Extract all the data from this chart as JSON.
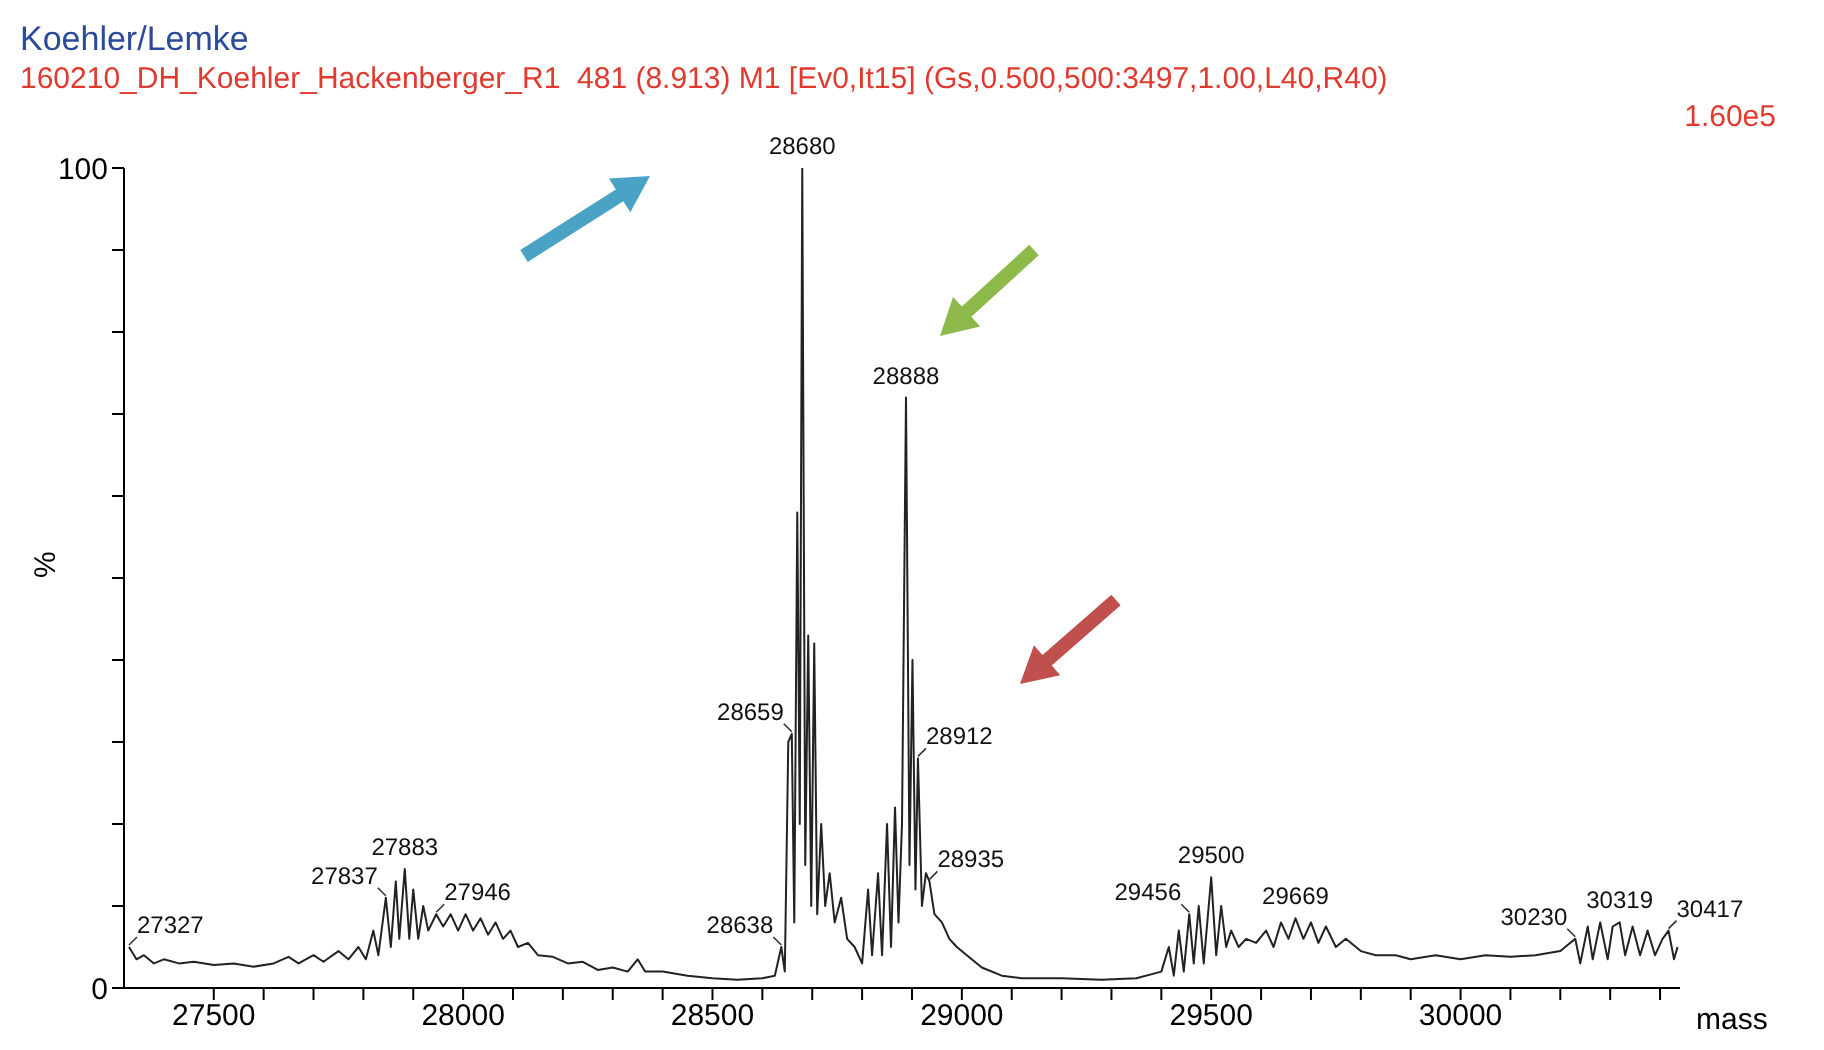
{
  "chart_data": {
    "type": "line",
    "title": "Koehler/Lemke",
    "subtitle": "160210_DH_Koehler_Hackenberger_R1  481 (8.913) M1 [Ev0,It15] (Gs,0.500,500:3497,1.00,L40,R40)",
    "xlabel": "mass",
    "ylabel": "%",
    "x": [
      27330,
      27345,
      27360,
      27380,
      27400,
      27430,
      27460,
      27500,
      27540,
      27580,
      27620,
      27650,
      27670,
      27700,
      27720,
      27750,
      27770,
      27790,
      27805,
      27820,
      27830,
      27845,
      27855,
      27865,
      27872,
      27883,
      27892,
      27900,
      27910,
      27920,
      27930,
      27946,
      27960,
      27975,
      27990,
      28005,
      28020,
      28035,
      28050,
      28065,
      28080,
      28095,
      28110,
      28130,
      28150,
      28180,
      28210,
      28240,
      28270,
      28300,
      28330,
      28350,
      28365,
      28400,
      28450,
      28500,
      28550,
      28600,
      28625,
      28638,
      28645,
      28652,
      28659,
      28664,
      28670,
      28675,
      28680,
      28686,
      28692,
      28698,
      28704,
      28710,
      28718,
      28726,
      28735,
      28745,
      28758,
      28770,
      28785,
      28800,
      28812,
      28820,
      28832,
      28840,
      28850,
      28858,
      28866,
      28873,
      28880,
      28888,
      28895,
      28901,
      28907,
      28912,
      28920,
      28928,
      28935,
      28945,
      28960,
      28975,
      28990,
      29010,
      29040,
      29080,
      29120,
      29200,
      29280,
      29350,
      29400,
      29415,
      29425,
      29435,
      29445,
      29456,
      29465,
      29475,
      29485,
      29500,
      29510,
      29520,
      29530,
      29540,
      29555,
      29570,
      29590,
      29610,
      29625,
      29640,
      29655,
      29669,
      29685,
      29700,
      29715,
      29730,
      29750,
      29770,
      29800,
      29830,
      29870,
      29900,
      29950,
      30000,
      30050,
      30100,
      30150,
      30200,
      30230,
      30240,
      30255,
      30265,
      30280,
      30295,
      30305,
      30319,
      30330,
      30345,
      30360,
      30375,
      30390,
      30405,
      30417,
      30428,
      30435
    ],
    "series": [
      {
        "color": "#222222",
        "values": [
          5,
          3.5,
          4,
          3,
          3.5,
          3,
          3.2,
          2.8,
          3,
          2.6,
          3,
          3.8,
          3,
          4,
          3.2,
          4.5,
          3.5,
          5,
          3.5,
          7,
          4,
          11,
          5,
          13,
          6,
          14.5,
          6,
          12,
          6,
          10,
          7,
          9,
          7.5,
          9,
          7,
          9,
          7,
          8.5,
          6.5,
          8,
          6,
          7,
          5,
          5.5,
          4,
          3.8,
          3,
          3.2,
          2.2,
          2.5,
          2,
          3.5,
          2,
          2,
          1.5,
          1.2,
          1,
          1.2,
          1.5,
          5,
          2,
          30,
          31,
          8,
          58,
          20,
          100,
          15,
          43,
          10,
          42,
          9,
          20,
          10,
          14,
          8,
          11,
          6,
          5,
          3,
          12,
          4,
          14,
          4,
          20,
          5,
          22,
          8,
          20,
          72,
          15,
          40,
          12,
          28,
          10,
          14,
          13,
          9,
          8,
          6,
          5,
          4,
          2.5,
          1.5,
          1.2,
          1.2,
          1,
          1.2,
          2,
          5,
          1.5,
          7,
          2,
          9,
          3,
          10,
          3,
          13.5,
          4,
          10,
          5,
          7,
          5,
          6,
          5.5,
          7,
          5,
          8,
          6,
          8.5,
          6,
          8,
          5.5,
          7.5,
          5,
          6,
          4.5,
          4,
          4,
          3.5,
          4,
          3.5,
          4,
          3.8,
          4,
          4.5,
          6,
          3,
          7.5,
          3.5,
          8,
          3.5,
          7.5,
          8,
          4,
          7.5,
          4,
          7,
          4,
          6,
          7,
          3.5,
          5
        ]
      }
    ],
    "xlim": [
      27320,
      30440
    ],
    "xticks": [
      27500,
      {
        "value": 27600,
        "label": null
      },
      {
        "value": 27700,
        "label": null
      },
      {
        "value": 27800,
        "label": null
      },
      {
        "value": 27900,
        "label": null
      },
      28000,
      {
        "value": 28100,
        "label": null
      },
      {
        "value": 28200,
        "label": null
      },
      {
        "value": 28300,
        "label": null
      },
      {
        "value": 28400,
        "label": null
      },
      28500,
      {
        "value": 28600,
        "label": null
      },
      {
        "value": 28700,
        "label": null
      },
      {
        "value": 28800,
        "label": null
      },
      {
        "value": 28900,
        "label": null
      },
      29000,
      {
        "value": 29100,
        "label": null
      },
      {
        "value": 29200,
        "label": null
      },
      {
        "value": 29300,
        "label": null
      },
      {
        "value": 29400,
        "label": null
      },
      29500,
      {
        "value": 29600,
        "label": null
      },
      {
        "value": 29700,
        "label": null
      },
      {
        "value": 29800,
        "label": null
      },
      {
        "value": 29900,
        "label": null
      },
      30000,
      {
        "value": 30100,
        "label": null
      },
      {
        "value": 30200,
        "label": null
      },
      {
        "value": 30300,
        "label": null
      },
      {
        "value": 30400,
        "label": null
      }
    ],
    "ylim": [
      0,
      100
    ],
    "yticks": [
      0,
      {
        "value": 10,
        "label": null
      },
      {
        "value": 20,
        "label": null
      },
      {
        "value": 30,
        "label": null
      },
      {
        "value": 40,
        "label": null
      },
      {
        "value": 50,
        "label": null
      },
      {
        "value": 60,
        "label": null
      },
      {
        "value": 70,
        "label": null
      },
      {
        "value": 80,
        "label": null
      },
      {
        "value": 90,
        "label": null
      },
      100
    ],
    "annotations": [
      {
        "text": "27327",
        "x": 27330,
        "y": 5
      },
      {
        "text": "27837",
        "x": 27845,
        "y": 11
      },
      {
        "text": "27883",
        "x": 27883,
        "y": 14.5
      },
      {
        "text": "27946",
        "x": 27946,
        "y": 9
      },
      {
        "text": "28638",
        "x": 28638,
        "y": 5
      },
      {
        "text": "28659",
        "x": 28659,
        "y": 31
      },
      {
        "text": "28680",
        "x": 28680,
        "y": 100
      },
      {
        "text": "28888",
        "x": 28888,
        "y": 72
      },
      {
        "text": "28912",
        "x": 28912,
        "y": 28
      },
      {
        "text": "28935",
        "x": 28935,
        "y": 13
      },
      {
        "text": "29456",
        "x": 29456,
        "y": 9
      },
      {
        "text": "29500",
        "x": 29500,
        "y": 13.5
      },
      {
        "text": "29669",
        "x": 29669,
        "y": 8.5
      },
      {
        "text": "30230",
        "x": 30230,
        "y": 6
      },
      {
        "text": "30319",
        "x": 30319,
        "y": 8
      },
      {
        "text": "30417",
        "x": 30417,
        "y": 7
      },
      "1.60e5"
    ]
  }
}
